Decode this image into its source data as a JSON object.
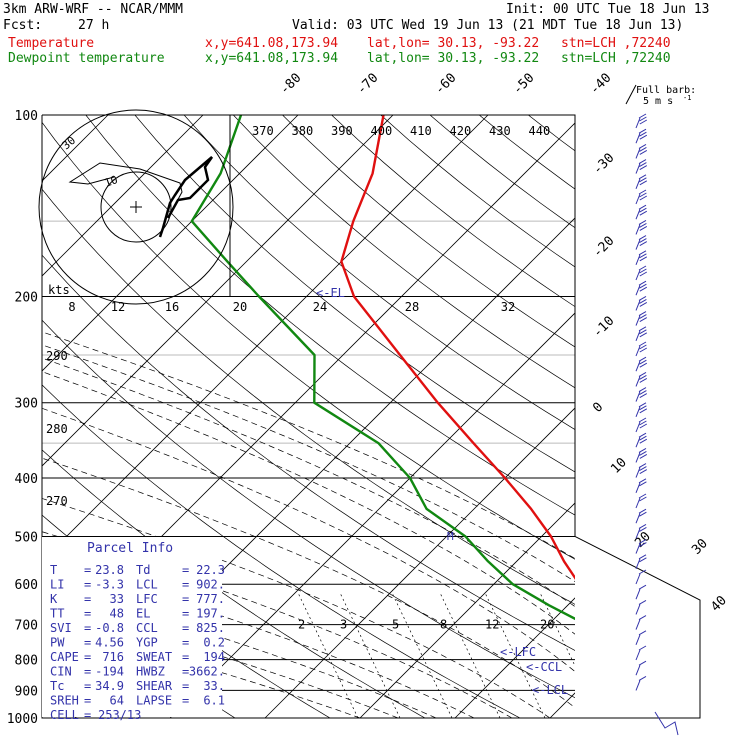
{
  "header": {
    "model": "3km ARW-WRF -- NCAR/MMM",
    "init": "Init: 00 UTC Tue 18 Jun 13",
    "fcst_label": "Fcst:",
    "fcst_value": "27 h",
    "valid": "Valid: 03 UTC Wed 19 Jun 13 (21 MDT Tue 18 Jun 13)",
    "temp_label": "Temperature",
    "dew_label": "Dewpoint temperature",
    "xy": "x,y=641.08,173.94",
    "latlon": "lat,lon= 30.13, -93.22",
    "station": "stn=LCH ,72240"
  },
  "colors": {
    "temperature": "#e01010",
    "dewpoint": "#118811",
    "barbs": "#3333aa",
    "hodograph": "#000000"
  },
  "barb_legend": {
    "line1": "Full barb:",
    "line2": "5 m s",
    "superscript": "-1"
  },
  "parcel_info": {
    "title": "Parcel Info",
    "rows": [
      {
        "l1": "T",
        "v1": "23.8",
        "l2": "Td",
        "v2": "22.3"
      },
      {
        "l1": "LI",
        "v1": "-3.3",
        "l2": "LCL",
        "v2": "902."
      },
      {
        "l1": "K",
        "v1": "33",
        "l2": "LFC",
        "v2": "777."
      },
      {
        "l1": "TT",
        "v1": "48",
        "l2": "EL",
        "v2": "197."
      },
      {
        "l1": "SVI",
        "v1": "-0.8",
        "l2": "CCL",
        "v2": "825."
      },
      {
        "l1": "PW",
        "v1": "4.56",
        "l2": "YGP",
        "v2": "0.2"
      },
      {
        "l1": "CAPE",
        "v1": "716",
        "l2": "SWEAT",
        "v2": "194"
      },
      {
        "l1": "CIN",
        "v1": "-194",
        "l2": "HWBZ",
        "v2": "3662."
      },
      {
        "l1": "Tc",
        "v1": "34.9",
        "l2": "SHEAR",
        "v2": "33."
      },
      {
        "l1": "SREH",
        "v1": "64",
        "l2": "LAPSE",
        "v2": "6.1"
      }
    ],
    "cell_label": "CELL",
    "cell_value": "253/13"
  },
  "chart_data": {
    "type": "line",
    "pressure_levels": [
      100,
      200,
      300,
      400,
      500,
      600,
      700,
      800,
      900,
      1000
    ],
    "isotherm_labels": [
      -80,
      -70,
      -60,
      -50,
      -40,
      -30,
      -20,
      -10,
      0,
      10,
      20,
      30,
      40
    ],
    "dry_adiabat_labels": [
      290,
      280,
      270
    ],
    "moist_adiabat_labels": [
      370,
      380,
      390,
      400,
      410,
      420,
      430,
      440
    ],
    "mixing_ratio_labels": [
      2,
      3,
      5,
      8,
      12,
      20
    ],
    "hodograph_speed_labels": [
      8,
      12,
      16,
      20,
      24,
      28,
      32
    ],
    "hodograph_units": "kts",
    "hodograph_ring_labels": [
      10,
      30
    ],
    "level_markers": [
      "<-EL",
      "<-LFC",
      "<-CCL",
      "<-LCL"
    ],
    "freezing_marker": "M",
    "series": [
      {
        "name": "Temperature",
        "p": [
          1000,
          950,
          900,
          850,
          800,
          750,
          700,
          650,
          600,
          550,
          500,
          450,
          400,
          350,
          300,
          250,
          200,
          175,
          150,
          125,
          100
        ],
        "t": [
          24,
          25,
          22,
          18,
          14,
          10,
          7,
          3,
          -1,
          -5,
          -9,
          -14,
          -20,
          -27,
          -35,
          -44,
          -55,
          -60,
          -63,
          -66,
          -71
        ]
      },
      {
        "name": "Dewpoint temperature",
        "p": [
          1000,
          950,
          900,
          850,
          800,
          750,
          700,
          650,
          600,
          550,
          500,
          450,
          400,
          350,
          300,
          250,
          200,
          175,
          150,
          125,
          100
        ],
        "t": [
          22,
          21,
          19,
          16,
          13,
          9,
          4,
          -2,
          -8,
          -13,
          -18,
          -25,
          -30,
          -37,
          -48,
          -53,
          -65,
          -72,
          -80,
          -82,
          -86
        ]
      }
    ]
  }
}
